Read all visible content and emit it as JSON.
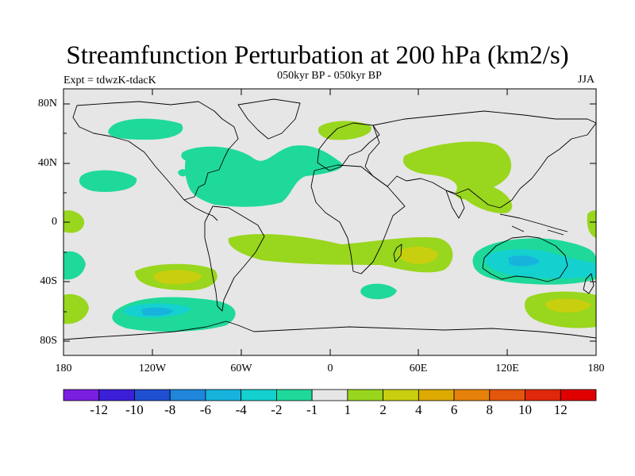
{
  "header": {
    "title": "Streamfunction Perturbation at 200 hPa (km2/s)",
    "left_subtitle": "Expt = tdwzK-tdacK",
    "center_subtitle": "050kyr BP - 050kyr BP",
    "right_subtitle": "JJA"
  },
  "axes": {
    "lat_ticks": [
      {
        "label": "80N",
        "value": 80
      },
      {
        "label": "40N",
        "value": 40
      },
      {
        "label": "0",
        "value": 0
      },
      {
        "label": "40S",
        "value": -40
      },
      {
        "label": "80S",
        "value": -80
      }
    ],
    "lon_ticks": [
      {
        "label": "180",
        "value": -180
      },
      {
        "label": "120W",
        "value": -120
      },
      {
        "label": "60W",
        "value": -60
      },
      {
        "label": "0",
        "value": 0
      },
      {
        "label": "60E",
        "value": 60
      },
      {
        "label": "120E",
        "value": 120
      },
      {
        "label": "180",
        "value": 180
      }
    ],
    "lon_range": [
      -180,
      180
    ],
    "lat_range": [
      -90,
      90
    ]
  },
  "colorbar": {
    "colors": [
      "#7a1ee0",
      "#3b1fd9",
      "#1f4fd1",
      "#1f86dc",
      "#17b3dc",
      "#14d0cf",
      "#1fd99a",
      "#e6e6e6",
      "#99d61e",
      "#c8cf0f",
      "#dcaa00",
      "#e6820a",
      "#e3560c",
      "#e0280c",
      "#e00000"
    ],
    "labels": [
      "-12",
      "-10",
      "-8",
      "-6",
      "-4",
      "-2",
      "-1",
      "1",
      "2",
      "4",
      "6",
      "8",
      "10",
      "12"
    ]
  },
  "map": {
    "background_color": "#e6e6e6",
    "coast_color": "#000000",
    "level_colors": {
      "neg1": "#1fd99a",
      "neg2": "#14d0cf",
      "neg4": "#17b3dc",
      "pos2": "#99d61e",
      "pos4": "#c8cf0f"
    }
  }
}
